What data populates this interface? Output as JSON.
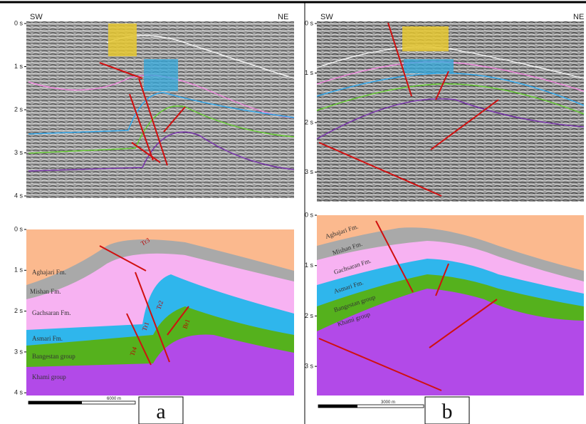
{
  "panels": [
    {
      "label": "a",
      "seismic": {
        "left": "SW",
        "right": "NE",
        "ticks": [
          "0 s",
          "1 s",
          "2 s",
          "3 s",
          "4 s"
        ]
      },
      "section": {
        "ticks": [
          "0 s",
          "1 s",
          "2 s",
          "3 s",
          "4 s"
        ],
        "formations": [
          "Aghajari Fm.",
          "Mishan Fm.",
          "Gachsaran Fm.",
          "Asmari Fm.",
          "Bangestan group",
          "Khami group"
        ],
        "faults": [
          "Tr3",
          "Tr2",
          "Tr1",
          "Tr4",
          "Br1"
        ],
        "scale": "6000 m"
      }
    },
    {
      "label": "b",
      "seismic": {
        "left": "SW",
        "right": "NE",
        "ticks": [
          "0 s",
          "1 s",
          "2 s",
          "3 s"
        ]
      },
      "section": {
        "ticks": [
          "0 s",
          "1 s",
          "2 s",
          "3 s"
        ],
        "formations": [
          "Aghajari Fm.",
          "Mishan Fm.",
          "Gachsaran Fm.",
          "Asmari Fm.",
          "Bangestan group",
          "Khami group"
        ],
        "scale": "3000 m"
      }
    }
  ]
}
